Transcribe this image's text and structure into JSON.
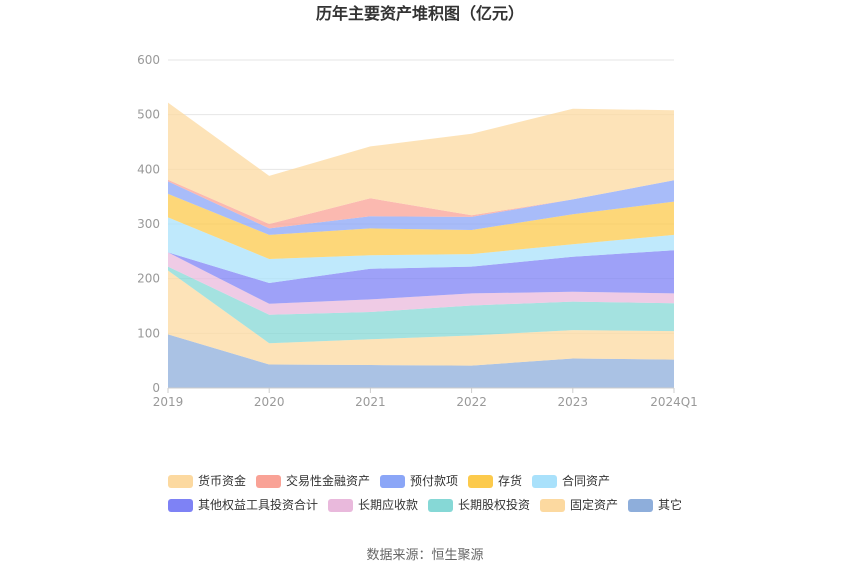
{
  "chart_data": {
    "type": "area",
    "stacked": true,
    "title": "历年主要资产堆积图（亿元）",
    "categories": [
      "2019",
      "2020",
      "2021",
      "2022",
      "2023",
      "2024Q1"
    ],
    "ylim": [
      0,
      600
    ],
    "yticks": [
      "0",
      "100",
      "200",
      "300",
      "400",
      "500",
      "600"
    ],
    "grid": true,
    "legend_position": "bottom",
    "series": [
      {
        "name": "其它",
        "color": "#8eaedb",
        "values": [
          98,
          43,
          42,
          41,
          54,
          52
        ]
      },
      {
        "name": "固定资产",
        "color": "#fcd9a0",
        "values": [
          117,
          39,
          47,
          55,
          52,
          52
        ]
      },
      {
        "name": "长期股权投资",
        "color": "#86d8d6",
        "values": [
          7,
          52,
          50,
          55,
          52,
          51
        ]
      },
      {
        "name": "长期应收款",
        "color": "#e9b9dc",
        "values": [
          26,
          20,
          23,
          22,
          18,
          18
        ]
      },
      {
        "name": "其他权益工具投资合计",
        "color": "#7e82f5",
        "values": [
          0,
          38,
          56,
          49,
          64,
          79
        ]
      },
      {
        "name": "合同资产",
        "color": "#a9e1fb",
        "values": [
          64,
          44,
          25,
          23,
          23,
          28
        ]
      },
      {
        "name": "存货",
        "color": "#fcca4c",
        "values": [
          43,
          44,
          49,
          44,
          55,
          61
        ]
      },
      {
        "name": "预付款项",
        "color": "#8ba6f7",
        "values": [
          23,
          12,
          22,
          24,
          27,
          39
        ]
      },
      {
        "name": "交易性金融资产",
        "color": "#f9a296",
        "values": [
          3,
          8,
          33,
          3,
          0,
          0
        ]
      },
      {
        "name": "货币资金",
        "color": "#fcd9a0",
        "values": [
          141,
          88,
          95,
          149,
          166,
          128
        ]
      }
    ],
    "legend_order": [
      "货币资金",
      "交易性金融资产",
      "预付款项",
      "存货",
      "合同资产",
      "其他权益工具投资合计",
      "长期应收款",
      "长期股权投资",
      "固定资产",
      "其它"
    ]
  },
  "source_text": "数据来源：恒生聚源"
}
